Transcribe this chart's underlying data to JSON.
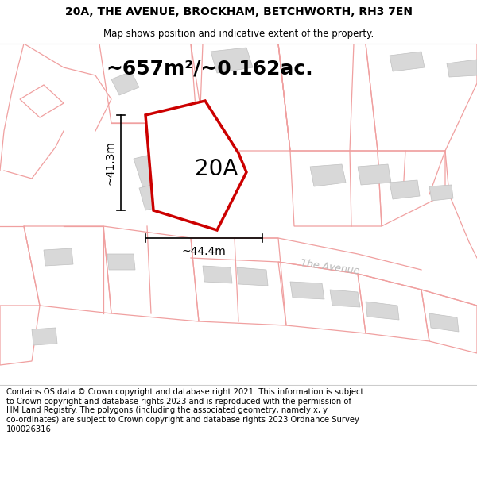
{
  "title_line1": "20A, THE AVENUE, BROCKHAM, BETCHWORTH, RH3 7EN",
  "title_line2": "Map shows position and indicative extent of the property.",
  "area_label": "~657m²/~0.162ac.",
  "label_20a": "20A",
  "dim_vertical": "~41.3m",
  "dim_horizontal": "~44.4m",
  "street_label": "The Avenue",
  "footer": "Contains OS data © Crown copyright and database right 2021. This information is subject\nto Crown copyright and database rights 2023 and is reproduced with the permission of\nHM Land Registry. The polygons (including the associated geometry, namely x, y\nco-ordinates) are subject to Crown copyright and database rights 2023 Ordnance Survey\n100026316.",
  "bg_color": "#f8f8f5",
  "building_fill": "#d8d8d8",
  "building_edge": "#c0c0c0",
  "road_color": "#f0a0a0",
  "plot_fill": "white",
  "plot_edge": "#cc0000",
  "road_label_color": "#b8b8b8",
  "title_fontsize": 10,
  "subtitle_fontsize": 8.5,
  "area_fontsize": 18,
  "label_fontsize": 20,
  "dim_fontsize": 10,
  "footer_fontsize": 7.2
}
